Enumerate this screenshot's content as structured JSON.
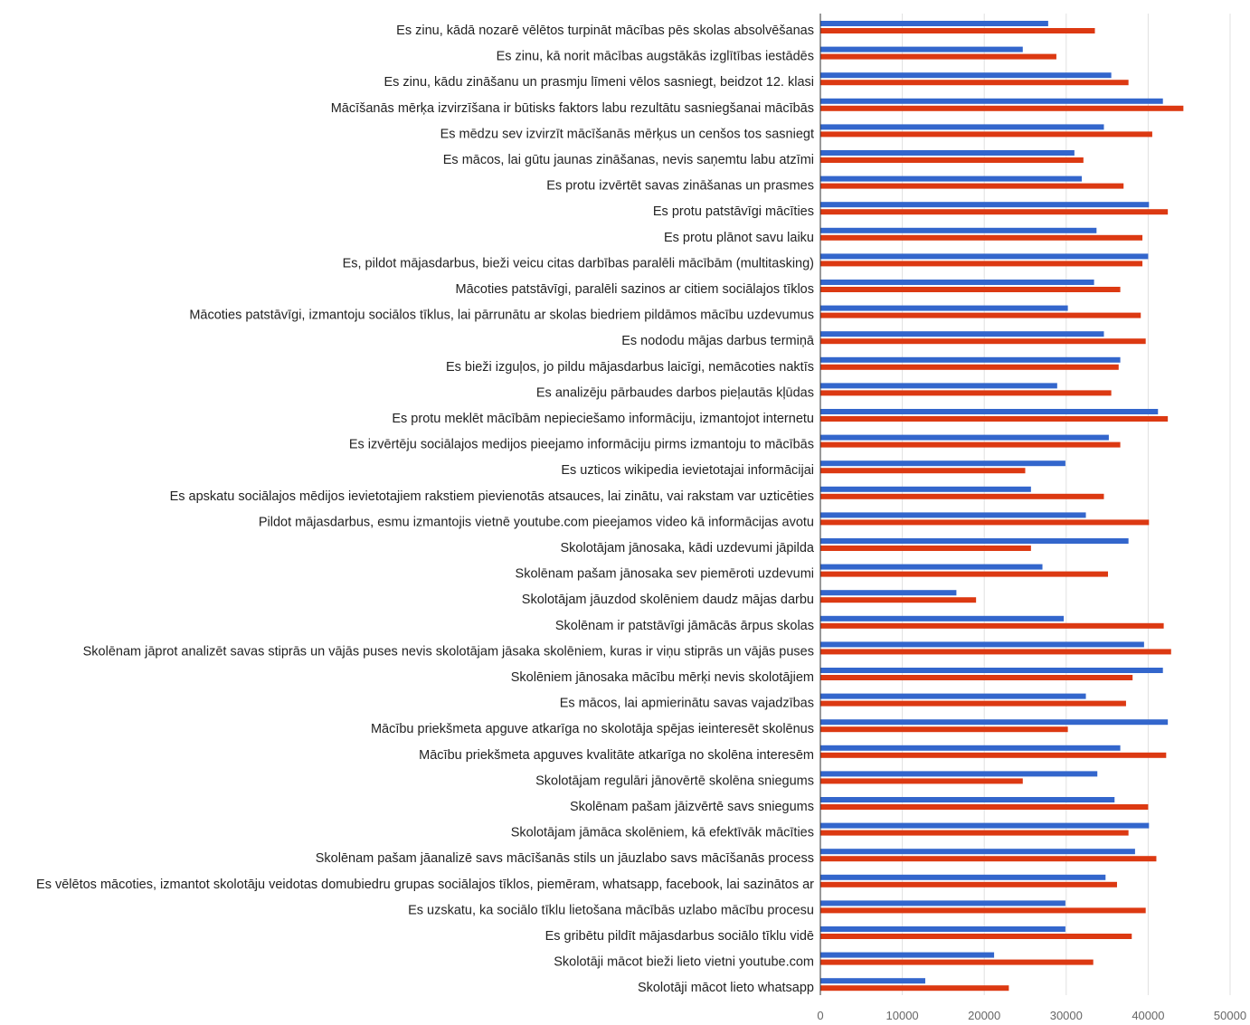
{
  "chart_data": {
    "type": "bar",
    "orientation": "horizontal",
    "title": "",
    "xlabel": "",
    "ylabel": "",
    "xlim": [
      0,
      50000
    ],
    "x_ticks": [
      "0",
      "10000",
      "20000",
      "30000",
      "40000",
      "50000"
    ],
    "x_tick_values": [
      0,
      10000,
      20000,
      30000,
      40000,
      50000
    ],
    "grid": "vertical",
    "legend": "none",
    "categories": [
      "Es zinu, kādā nozarē vēlētos turpināt mācības pēs skolas absolvēšanas",
      "Es zinu, kā norit mācības augstākās izglītības iestādēs",
      "Es zinu, kādu zināšanu un prasmju līmeni vēlos sasniegt, beidzot 12. klasi",
      "Mācīšanās mērķa izvirzīšana ir būtisks faktors labu rezultātu sasniegšanai mācībās",
      "Es mēdzu sev izvirzīt mācīšanās mērķus un cenšos tos sasniegt",
      "Es mācos, lai gūtu jaunas zināšanas, nevis saņemtu labu atzīmi",
      "Es protu izvērtēt savas zināšanas un prasmes",
      "Es protu patstāvīgi mācīties",
      "Es protu plānot savu laiku",
      "Es, pildot mājasdarbus, bieži veicu citas darbības paralēli mācībām (multitasking)",
      "Mācoties patstāvīgi, paralēli sazinos ar citiem sociālajos tīklos",
      "Mācoties patstāvīgi, izmantoju sociālos tīklus, lai pārrunātu ar skolas biedriem pildāmos mācību uzdevumus",
      "Es nododu mājas darbus termiņā",
      "Es bieži izguļos, jo pildu mājasdarbus laicīgi, nemācoties naktīs",
      "Es analizēju pārbaudes darbos pieļautās kļūdas",
      "Es protu meklēt mācībām nepieciešamo informāciju, izmantojot internetu",
      "Es izvērtēju sociālajos medijos pieejamo informāciju pirms izmantoju to mācībās",
      "Es uzticos wikipedia ievietotajai informācijai",
      "Es apskatu sociālajos mēdijos ievietotajiem rakstiem pievienotās atsauces, lai zinātu, vai rakstam var uzticēties",
      "Pildot mājasdarbus, esmu izmantojis vietnē youtube.com pieejamos video kā informācijas avotu",
      "Skolotājam jānosaka, kādi uzdevumi jāpilda",
      "Skolēnam pašam jānosaka sev piemēroti uzdevumi",
      "Skolotājam jāuzdod skolēniem daudz mājas darbu",
      "Skolēnam ir patstāvīgi jāmācās ārpus skolas",
      "Skolēnam jāprot analizēt savas stiprās un vājās puses nevis skolotājam jāsaka skolēniem, kuras ir viņu stiprās un vājās puses",
      "Skolēniem jānosaka mācību mērķi nevis skolotājiem",
      "Es mācos, lai apmierinātu savas vajadzības",
      "Mācību priekšmeta apguve atkarīga no skolotāja spējas ieinteresēt skolēnus",
      "Mācību priekšmeta apguves kvalitāte atkarīga no skolēna interesēm",
      "Skolotājam regulāri jānovērtē skolēna sniegums",
      "Skolēnam pašam jāizvērtē savs sniegums",
      "Skolotājam jāmāca skolēniem, kā efektīvāk mācīties",
      "Skolēnam pašam jāanalizē savs mācīšanās stils un jāuzlabo savs mācīšanās process",
      "Es vēlētos mācoties, izmantot skolotāju veidotas domubiedru grupas sociālajos tīklos, piemēram, whatsapp, facebook, lai sazinātos ar",
      "Es uzskatu, ka sociālo tīklu lietošana mācībās uzlabo mācību procesu",
      "Es gribētu pildīt mājasdarbus sociālo tīklu vidē",
      "Skolotāji mācot bieži lieto vietni youtube.com",
      "Skolotāji mācot lieto whatsapp"
    ],
    "series": [
      {
        "color": "#3366cc",
        "values": [
          27800,
          24700,
          35500,
          41800,
          34600,
          31000,
          31900,
          40100,
          33700,
          40000,
          33400,
          30200,
          34600,
          36600,
          28900,
          41200,
          35200,
          29900,
          25700,
          32400,
          37600,
          27100,
          16600,
          29700,
          39500,
          41800,
          32400,
          42400,
          36600,
          33800,
          35900,
          40100,
          38400,
          34800,
          29900,
          29900,
          21200,
          12800
        ]
      },
      {
        "color": "#dc3912",
        "values": [
          33500,
          28800,
          37600,
          44300,
          40500,
          32100,
          37000,
          42400,
          39300,
          39300,
          36600,
          39100,
          39700,
          36400,
          35500,
          42400,
          36600,
          25000,
          34600,
          40100,
          25700,
          35100,
          19000,
          41900,
          42800,
          38100,
          37300,
          30200,
          42200,
          24700,
          40000,
          37600,
          41000,
          36200,
          39700,
          38000,
          33300,
          23000
        ]
      }
    ]
  }
}
